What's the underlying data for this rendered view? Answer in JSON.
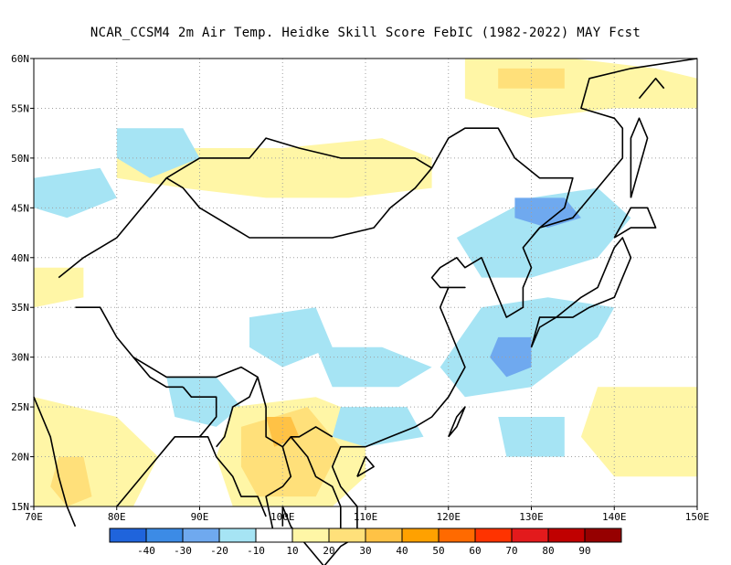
{
  "title": "NCAR_CCSM4  2m Air Temp. Heidke Skill Score FebIC (1982-2022) MAY Fcst",
  "map": {
    "lon_range": [
      70,
      150
    ],
    "lat_range": [
      15,
      60
    ],
    "lon_labels": [
      "70E",
      "80E",
      "90E",
      "100E",
      "110E",
      "120E",
      "130E",
      "140E",
      "150E"
    ],
    "lat_labels": [
      "15N",
      "20N",
      "25N",
      "30N",
      "35N",
      "40N",
      "45N",
      "50N",
      "55N",
      "60N"
    ],
    "grid": true,
    "colors": {
      "coast": "#000000",
      "grid": "#a0a0a0"
    }
  },
  "colorbar": {
    "colors": [
      "#1f64dc",
      "#3c8be6",
      "#6fa9ef",
      "#a6e4f4",
      "#ffffff",
      "#fff6a6",
      "#ffe07a",
      "#ffc245",
      "#ffa100",
      "#ff6a00",
      "#ff3300",
      "#e31a1c",
      "#c00000",
      "#960000"
    ],
    "labels": [
      "-40",
      "-30",
      "-20",
      "-10",
      "10",
      "20",
      "30",
      "40",
      "50",
      "60",
      "70",
      "80",
      "90"
    ]
  },
  "regions": [
    {
      "name": "yellow-north-mongolia",
      "level": 20,
      "poly": [
        [
          80,
          51
        ],
        [
          100,
          51
        ],
        [
          112,
          52
        ],
        [
          118,
          50
        ],
        [
          118,
          47
        ],
        [
          108,
          46
        ],
        [
          98,
          46
        ],
        [
          88,
          47
        ],
        [
          80,
          48
        ]
      ]
    },
    {
      "name": "yellow-northeast-siberia",
      "level": 20,
      "poly": [
        [
          122,
          60
        ],
        [
          135,
          60
        ],
        [
          145,
          59
        ],
        [
          150,
          58
        ],
        [
          150,
          55
        ],
        [
          140,
          55
        ],
        [
          130,
          54
        ],
        [
          122,
          56
        ]
      ]
    },
    {
      "name": "orange-northeast-siberia",
      "level": 30,
      "poly": [
        [
          126,
          59
        ],
        [
          134,
          59
        ],
        [
          134,
          57
        ],
        [
          126,
          57
        ]
      ]
    },
    {
      "name": "blue-northwest",
      "level": -10,
      "poly": [
        [
          80,
          53
        ],
        [
          88,
          53
        ],
        [
          90,
          50
        ],
        [
          84,
          48
        ],
        [
          80,
          50
        ]
      ]
    },
    {
      "name": "blue-kazakh",
      "level": -10,
      "poly": [
        [
          70,
          48
        ],
        [
          78,
          49
        ],
        [
          80,
          46
        ],
        [
          74,
          44
        ],
        [
          70,
          45
        ]
      ]
    },
    {
      "name": "yellow-west-border",
      "level": 20,
      "poly": [
        [
          70,
          39
        ],
        [
          76,
          39
        ],
        [
          76,
          36
        ],
        [
          70,
          35
        ]
      ]
    },
    {
      "name": "yellow-south-india",
      "level": 20,
      "poly": [
        [
          70,
          26
        ],
        [
          80,
          24
        ],
        [
          85,
          20
        ],
        [
          82,
          15
        ],
        [
          70,
          15
        ]
      ]
    },
    {
      "name": "orange-south-india",
      "level": 30,
      "poly": [
        [
          73,
          20
        ],
        [
          76,
          20
        ],
        [
          77,
          16
        ],
        [
          74,
          15
        ],
        [
          72,
          17
        ]
      ]
    },
    {
      "name": "blue-bangladesh",
      "level": -10,
      "poly": [
        [
          86,
          28
        ],
        [
          92,
          28
        ],
        [
          95,
          25
        ],
        [
          92,
          23
        ],
        [
          87,
          24
        ]
      ]
    },
    {
      "name": "yellow-indochina",
      "level": 20,
      "poly": [
        [
          94,
          25
        ],
        [
          104,
          26
        ],
        [
          110,
          24
        ],
        [
          110,
          18
        ],
        [
          106,
          15
        ],
        [
          94,
          15
        ],
        [
          92,
          20
        ]
      ]
    },
    {
      "name": "orange-indochina",
      "level": 30,
      "poly": [
        [
          95,
          23
        ],
        [
          103,
          25
        ],
        [
          107,
          21
        ],
        [
          104,
          16
        ],
        [
          97,
          16
        ],
        [
          95,
          19
        ]
      ]
    },
    {
      "name": "deep-orange-myanmar",
      "level": 40,
      "poly": [
        [
          98,
          24
        ],
        [
          101,
          24
        ],
        [
          102,
          22
        ],
        [
          99,
          21
        ]
      ]
    },
    {
      "name": "blue-tibet",
      "level": -10,
      "poly": [
        [
          96,
          34
        ],
        [
          104,
          35
        ],
        [
          106,
          31
        ],
        [
          100,
          29
        ],
        [
          96,
          31
        ]
      ]
    },
    {
      "name": "blue-central-china",
      "level": -10,
      "poly": [
        [
          104,
          31
        ],
        [
          112,
          31
        ],
        [
          118,
          29
        ],
        [
          114,
          27
        ],
        [
          106,
          27
        ]
      ]
    },
    {
      "name": "blue-southeast-china",
      "level": -10,
      "poly": [
        [
          107,
          25
        ],
        [
          115,
          25
        ],
        [
          117,
          22
        ],
        [
          110,
          21
        ],
        [
          106,
          22
        ]
      ]
    },
    {
      "name": "blue-korea-manchuria",
      "level": -10,
      "poly": [
        [
          121,
          42
        ],
        [
          130,
          46
        ],
        [
          138,
          47
        ],
        [
          142,
          44
        ],
        [
          138,
          40
        ],
        [
          130,
          38
        ],
        [
          124,
          38
        ]
      ]
    },
    {
      "name": "blue-japan-sea",
      "level": -10,
      "poly": [
        [
          124,
          35
        ],
        [
          132,
          36
        ],
        [
          140,
          35
        ],
        [
          138,
          32
        ],
        [
          130,
          27
        ],
        [
          122,
          26
        ],
        [
          119,
          29
        ]
      ]
    },
    {
      "name": "mid-blue-east-china-sea",
      "level": -20,
      "poly": [
        [
          126,
          32
        ],
        [
          130,
          32
        ],
        [
          130,
          29
        ],
        [
          127,
          28
        ],
        [
          125,
          30
        ]
      ]
    },
    {
      "name": "mid-blue-manchuria",
      "level": -20,
      "poly": [
        [
          128,
          46
        ],
        [
          134,
          46
        ],
        [
          136,
          44
        ],
        [
          132,
          43
        ],
        [
          128,
          44
        ]
      ]
    },
    {
      "name": "yellow-western-pacific",
      "level": 20,
      "poly": [
        [
          138,
          27
        ],
        [
          150,
          27
        ],
        [
          150,
          18
        ],
        [
          140,
          18
        ],
        [
          136,
          22
        ]
      ]
    },
    {
      "name": "blue-pacific",
      "level": -10,
      "poly": [
        [
          126,
          24
        ],
        [
          134,
          24
        ],
        [
          134,
          20
        ],
        [
          127,
          20
        ]
      ]
    }
  ],
  "coast_lines": [
    [
      [
        70,
        26
      ],
      [
        72,
        22
      ],
      [
        73,
        18
      ],
      [
        74,
        15
      ],
      [
        75,
        13
      ]
    ],
    [
      [
        80,
        15
      ],
      [
        82,
        17
      ],
      [
        85,
        20
      ],
      [
        87,
        22
      ],
      [
        89,
        22
      ],
      [
        91,
        22
      ],
      [
        92,
        20
      ],
      [
        94,
        18
      ],
      [
        95,
        16
      ],
      [
        97,
        16
      ],
      [
        98,
        14
      ]
    ],
    [
      [
        100,
        13
      ],
      [
        100,
        15
      ],
      [
        101,
        13
      ],
      [
        103,
        11
      ],
      [
        105,
        9
      ]
    ],
    [
      [
        105,
        9
      ],
      [
        107,
        11
      ],
      [
        109,
        12
      ],
      [
        109,
        15
      ],
      [
        107,
        17
      ],
      [
        106,
        19
      ],
      [
        107,
        21
      ],
      [
        110,
        21
      ],
      [
        113,
        22
      ],
      [
        116,
        23
      ],
      [
        118,
        24
      ],
      [
        120,
        26
      ],
      [
        122,
        29
      ],
      [
        121,
        31
      ],
      [
        120,
        33
      ],
      [
        119,
        35
      ],
      [
        120,
        37
      ],
      [
        122,
        37
      ],
      [
        119,
        37
      ],
      [
        118,
        38
      ],
      [
        119,
        39
      ],
      [
        121,
        40
      ],
      [
        122,
        39
      ],
      [
        124,
        40
      ],
      [
        125,
        38
      ],
      [
        126,
        36
      ],
      [
        127,
        34
      ],
      [
        129,
        35
      ],
      [
        129,
        37
      ],
      [
        130,
        39
      ],
      [
        129,
        41
      ],
      [
        131,
        43
      ],
      [
        135,
        44
      ],
      [
        138,
        47
      ],
      [
        141,
        50
      ],
      [
        141,
        53
      ],
      [
        140,
        54
      ],
      [
        136,
        55
      ],
      [
        137,
        58
      ],
      [
        142,
        59
      ],
      [
        150,
        60
      ]
    ],
    [
      [
        120,
        22
      ],
      [
        121,
        24
      ],
      [
        122,
        25
      ],
      [
        121,
        23
      ],
      [
        120,
        22
      ]
    ],
    [
      [
        109,
        18
      ],
      [
        110,
        20
      ],
      [
        111,
        19
      ],
      [
        109,
        18
      ]
    ],
    [
      [
        130,
        31
      ],
      [
        131,
        34
      ],
      [
        135,
        34
      ],
      [
        137,
        35
      ],
      [
        140,
        36
      ],
      [
        141,
        38
      ],
      [
        142,
        40
      ],
      [
        141,
        42
      ],
      [
        140,
        41
      ],
      [
        139,
        39
      ],
      [
        138,
        37
      ],
      [
        136,
        36
      ],
      [
        133,
        34
      ],
      [
        131,
        33
      ],
      [
        130,
        31
      ]
    ],
    [
      [
        140,
        42
      ],
      [
        142,
        43
      ],
      [
        145,
        43
      ],
      [
        144,
        45
      ],
      [
        142,
        45
      ],
      [
        140,
        42
      ]
    ],
    [
      [
        142,
        46
      ],
      [
        143,
        49
      ],
      [
        144,
        52
      ],
      [
        143,
        54
      ],
      [
        142,
        52
      ],
      [
        142,
        46
      ]
    ],
    [
      [
        143,
        56
      ],
      [
        145,
        58
      ],
      [
        146,
        57
      ]
    ]
  ],
  "border_lines": [
    [
      [
        73,
        38
      ],
      [
        76,
        40
      ],
      [
        80,
        42
      ],
      [
        83,
        45
      ],
      [
        86,
        48
      ],
      [
        88,
        49
      ],
      [
        90,
        50
      ],
      [
        96,
        50
      ],
      [
        98,
        52
      ],
      [
        102,
        51
      ],
      [
        107,
        50
      ],
      [
        112,
        50
      ],
      [
        116,
        50
      ],
      [
        118,
        49
      ],
      [
        116,
        47
      ],
      [
        113,
        45
      ],
      [
        111,
        43
      ],
      [
        106,
        42
      ],
      [
        100,
        42
      ],
      [
        96,
        42
      ],
      [
        92,
        44
      ],
      [
        90,
        45
      ],
      [
        88,
        47
      ],
      [
        86,
        48
      ]
    ],
    [
      [
        118,
        49
      ],
      [
        120,
        52
      ],
      [
        122,
        53
      ],
      [
        126,
        53
      ],
      [
        128,
        50
      ],
      [
        131,
        48
      ],
      [
        133,
        48
      ],
      [
        135,
        48
      ],
      [
        134,
        45
      ],
      [
        131,
        43
      ],
      [
        130,
        42
      ]
    ],
    [
      [
        75,
        35
      ],
      [
        78,
        35
      ],
      [
        80,
        32
      ],
      [
        82,
        30
      ],
      [
        86,
        28
      ],
      [
        88,
        28
      ],
      [
        90,
        28
      ],
      [
        92,
        28
      ],
      [
        95,
        29
      ],
      [
        97,
        28
      ],
      [
        98,
        25
      ],
      [
        98,
        22
      ],
      [
        100,
        21
      ],
      [
        101,
        22
      ],
      [
        102,
        22
      ],
      [
        104,
        23
      ],
      [
        106,
        22
      ]
    ],
    [
      [
        88,
        27
      ],
      [
        89,
        26
      ],
      [
        92,
        26
      ],
      [
        92,
        24
      ],
      [
        90,
        22
      ]
    ],
    [
      [
        97,
        28
      ],
      [
        96,
        26
      ],
      [
        94,
        25
      ],
      [
        93,
        22
      ],
      [
        92,
        21
      ]
    ],
    [
      [
        100,
        21
      ],
      [
        101,
        18
      ],
      [
        100,
        17
      ],
      [
        98,
        16
      ],
      [
        99,
        12
      ]
    ],
    [
      [
        101,
        22
      ],
      [
        103,
        20
      ],
      [
        104,
        18
      ],
      [
        106,
        17
      ],
      [
        107,
        15
      ],
      [
        107,
        12
      ]
    ],
    [
      [
        82,
        30
      ],
      [
        84,
        28
      ],
      [
        86,
        27
      ],
      [
        88,
        27
      ]
    ]
  ]
}
